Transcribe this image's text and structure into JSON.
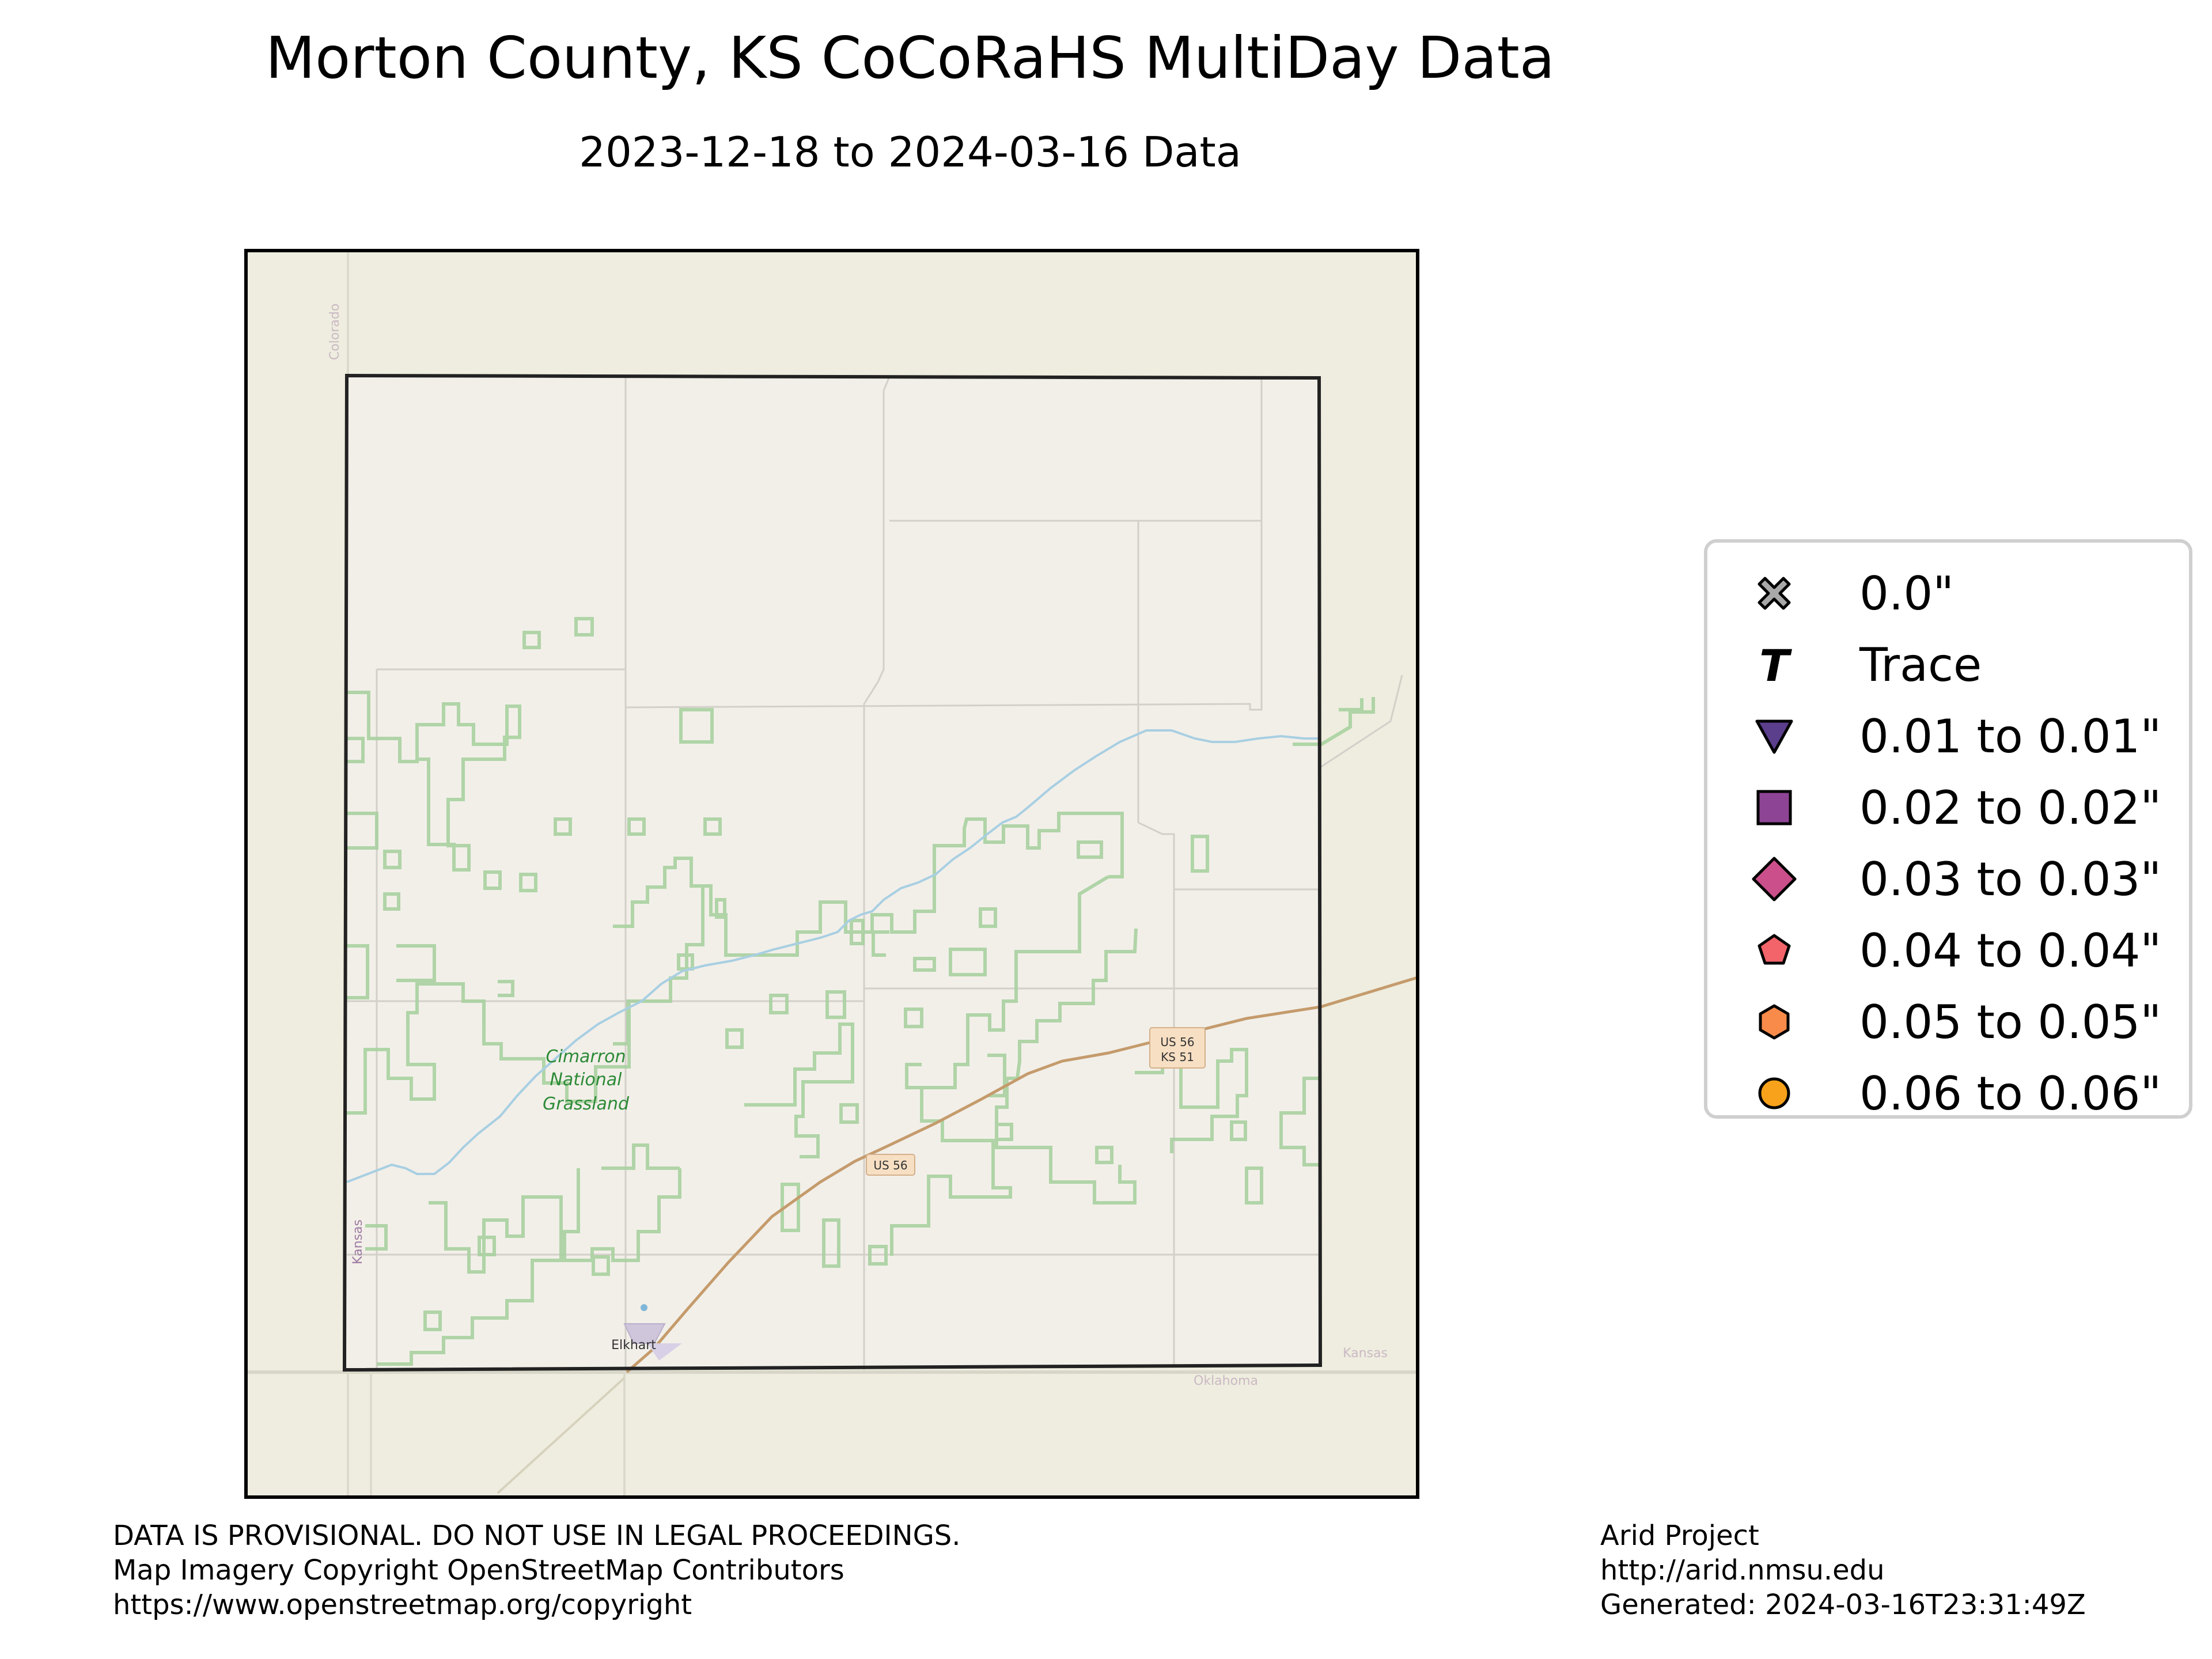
{
  "header": {
    "title": "Morton County, KS CoCoRaHS MultiDay Data",
    "subtitle": "2023-12-18 to 2024-03-16 Data"
  },
  "map_labels": {
    "grassland": [
      "Cimarron",
      "National",
      "Grassland"
    ],
    "town": "Elkhart",
    "shield_us56_main": "US 56",
    "shield_us56_ks51": [
      "US 56",
      "KS 51"
    ],
    "state_colorado": "Colorado",
    "state_kansas_west": "Kansas",
    "state_kansas_east": "Kansas",
    "state_oklahoma": "Oklahoma"
  },
  "legend": {
    "items": [
      {
        "label": "0.0\"",
        "icon": "x-marker-icon",
        "color": "#a8a8a8"
      },
      {
        "label": "Trace",
        "icon": "trace-t-icon",
        "color": "#000000"
      },
      {
        "label": "0.01 to 0.01\"",
        "icon": "triangle-down-icon",
        "color": "#5b3e8c"
      },
      {
        "label": "0.02 to 0.02\"",
        "icon": "square-icon",
        "color": "#8e4494"
      },
      {
        "label": "0.03 to 0.03\"",
        "icon": "diamond-icon",
        "color": "#cb4f8b"
      },
      {
        "label": "0.04 to 0.04\"",
        "icon": "pentagon-icon",
        "color": "#f2646a"
      },
      {
        "label": "0.05 to 0.05\"",
        "icon": "hexagon-icon",
        "color": "#f88b4a"
      },
      {
        "label": "0.06 to 0.06\"",
        "icon": "circle-icon",
        "color": "#f7a21a"
      }
    ]
  },
  "footer": {
    "left": [
      "DATA IS PROVISIONAL. DO NOT USE IN LEGAL PROCEEDINGS.",
      "Map Imagery Copyright OpenStreetMap Contributors",
      "https://www.openstreetmap.org/copyright"
    ],
    "right": [
      "Arid Project",
      "http://arid.nmsu.edu",
      "Generated: 2024-03-16T23:31:49Z"
    ]
  },
  "colors": {
    "map_outer_bg": "#eeeddf",
    "county_fill": "#f2efe9",
    "grassland_outline": "#a9d2a0",
    "river": "#a8cfe2",
    "highway": "#c59b6c",
    "county_border": "#222222"
  }
}
